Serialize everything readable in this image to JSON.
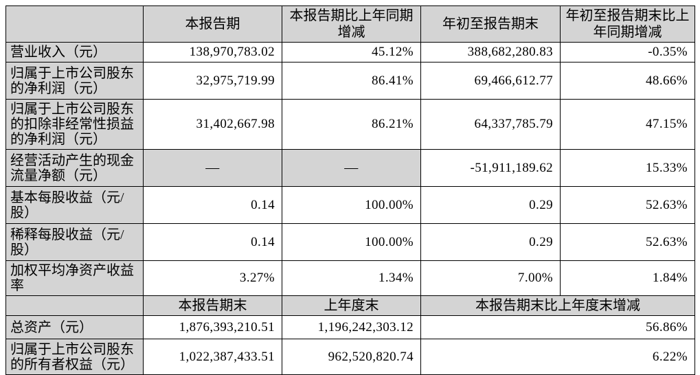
{
  "table": {
    "colors": {
      "cell_shade": "#d4d4d4",
      "border": "#000000",
      "text": "#000000",
      "value_cell_background": "#ffffff"
    },
    "section1": {
      "headers": [
        "",
        "本报告期",
        "本报告期比上年同期\n增减",
        "年初至报告期末",
        "年初至报告期末比上\n年同期增减"
      ],
      "rows": [
        {
          "label": "营业收入（元）",
          "values": [
            "138,970,783.02",
            "45.12%",
            "388,682,280.83",
            "-0.35%"
          ]
        },
        {
          "label": "归属于上市公司股东\n的净利润（元）",
          "values": [
            "32,975,719.99",
            "86.41%",
            "69,466,612.77",
            "48.66%"
          ]
        },
        {
          "label": "归属于上市公司股东\n的扣除非经常性损益\n的净利润（元）",
          "values": [
            "31,402,667.98",
            "86.21%",
            "64,337,785.79",
            "47.15%"
          ]
        },
        {
          "label": "经营活动产生的现金\n流量净额（元）",
          "values": [
            "—",
            "—",
            "-51,911,189.62",
            "15.33%"
          ],
          "gray_cells": [
            0,
            1
          ]
        },
        {
          "label": "基本每股收益（元/\n股）",
          "values": [
            "0.14",
            "100.00%",
            "0.29",
            "52.63%"
          ]
        },
        {
          "label": "稀释每股收益（元/\n股）",
          "values": [
            "0.14",
            "100.00%",
            "0.29",
            "52.63%"
          ]
        },
        {
          "label": "加权平均净资产收益\n率",
          "values": [
            "3.27%",
            "1.34%",
            "7.00%",
            "1.84%"
          ]
        }
      ]
    },
    "section2": {
      "headers": [
        "",
        "本报告期末",
        "上年度末",
        "本报告期末比上年度末增减"
      ],
      "rows": [
        {
          "label": "总资产（元）",
          "values": [
            "1,876,393,210.51",
            "1,196,242,303.12",
            "56.86%"
          ]
        },
        {
          "label": "归属于上市公司股东\n的所有者权益（元）",
          "values": [
            "1,022,387,433.51",
            "962,520,820.74",
            "6.22%"
          ]
        }
      ]
    }
  }
}
